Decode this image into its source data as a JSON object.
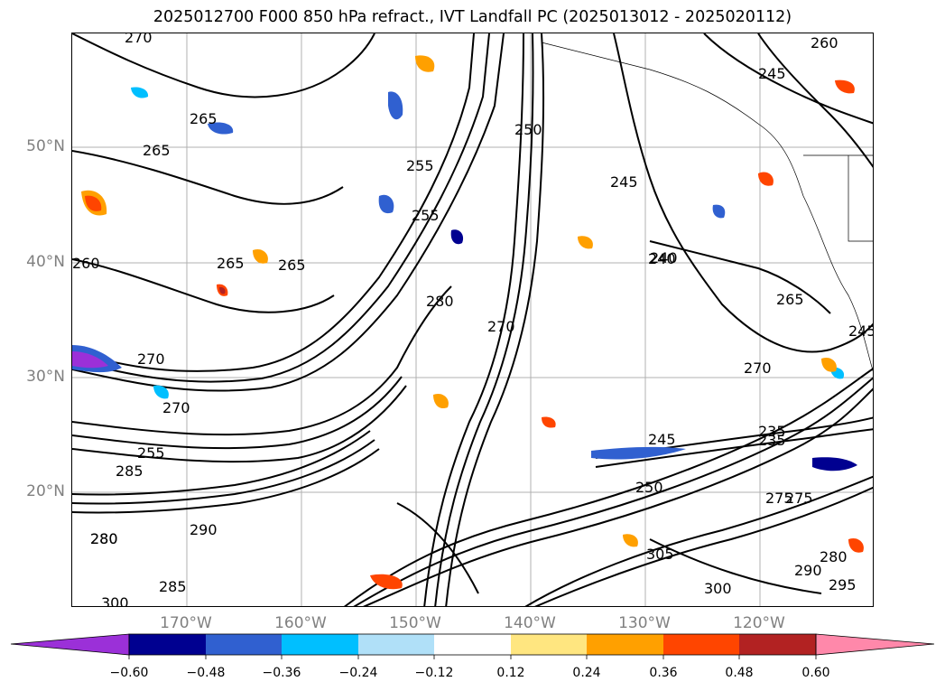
{
  "title": "2025012700 F000 850 hPa refract., IVT Landfall PC (2025013012 - 2025020112)",
  "lat_labels": [
    "50°N",
    "40°N",
    "30°N",
    "20°N"
  ],
  "lon_labels": [
    "170°W",
    "160°W",
    "150°W",
    "140°W",
    "130°W",
    "120°W"
  ],
  "colorbar": {
    "ticks": [
      "−0.60",
      "−0.48",
      "−0.36",
      "−0.24",
      "−0.12",
      "0.12",
      "0.24",
      "0.36",
      "0.48",
      "0.60"
    ],
    "colors": [
      "#9b30d8",
      "#000090",
      "#3060d0",
      "#00bfff",
      "#b0e0f8",
      "#ffffff",
      "#ffe680",
      "#ffa000",
      "#ff4500",
      "#b22222",
      "#ff88aa"
    ]
  },
  "contour_labels": [
    "270",
    "260",
    "265",
    "255",
    "250",
    "245",
    "240",
    "235",
    "255",
    "245",
    "265",
    "270",
    "260",
    "265",
    "270",
    "265",
    "280",
    "270",
    "275",
    "280",
    "285",
    "290",
    "295",
    "300",
    "305",
    "250",
    "245",
    "235",
    "240",
    "270",
    "245",
    "275",
    "280",
    "285",
    "290",
    "295",
    "300",
    "280",
    "265",
    "255"
  ],
  "fill_colors": {
    "neg": "#3060d0",
    "neg_dark": "#000090",
    "neg_light": "#00bfff",
    "pos": "#ff4500",
    "pos_mid": "#ffa000",
    "pos_light": "#ffe680",
    "pos_dark": "#b22222"
  }
}
